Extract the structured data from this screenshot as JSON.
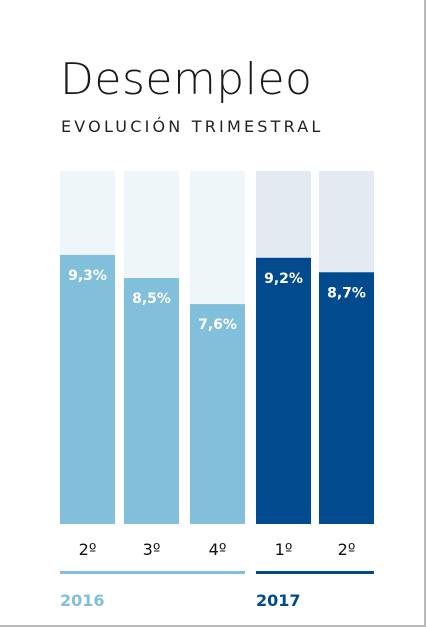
{
  "title": "Desempleo",
  "subtitle": "EVOLUCIÓN TRIMESTRAL",
  "colors": {
    "y2016_bar": "#81bfdb",
    "y2016_bg": "#eff6fa",
    "y2017_bar": "#004a8d",
    "y2017_bg": "#e3eaf2"
  },
  "chart_data": {
    "type": "bar",
    "categories": [
      "2º",
      "3º",
      "4º",
      "1º",
      "2º"
    ],
    "values": [
      9.3,
      8.5,
      7.6,
      9.2,
      8.7
    ],
    "value_labels": [
      "9,3%",
      "8,5%",
      "7,6%",
      "9,2%",
      "8,7%"
    ],
    "groups": [
      {
        "name": "2016",
        "indices": [
          0,
          1,
          2
        ]
      },
      {
        "name": "2017",
        "indices": [
          3,
          4
        ]
      }
    ],
    "ylim": [
      0,
      12.2
    ]
  }
}
